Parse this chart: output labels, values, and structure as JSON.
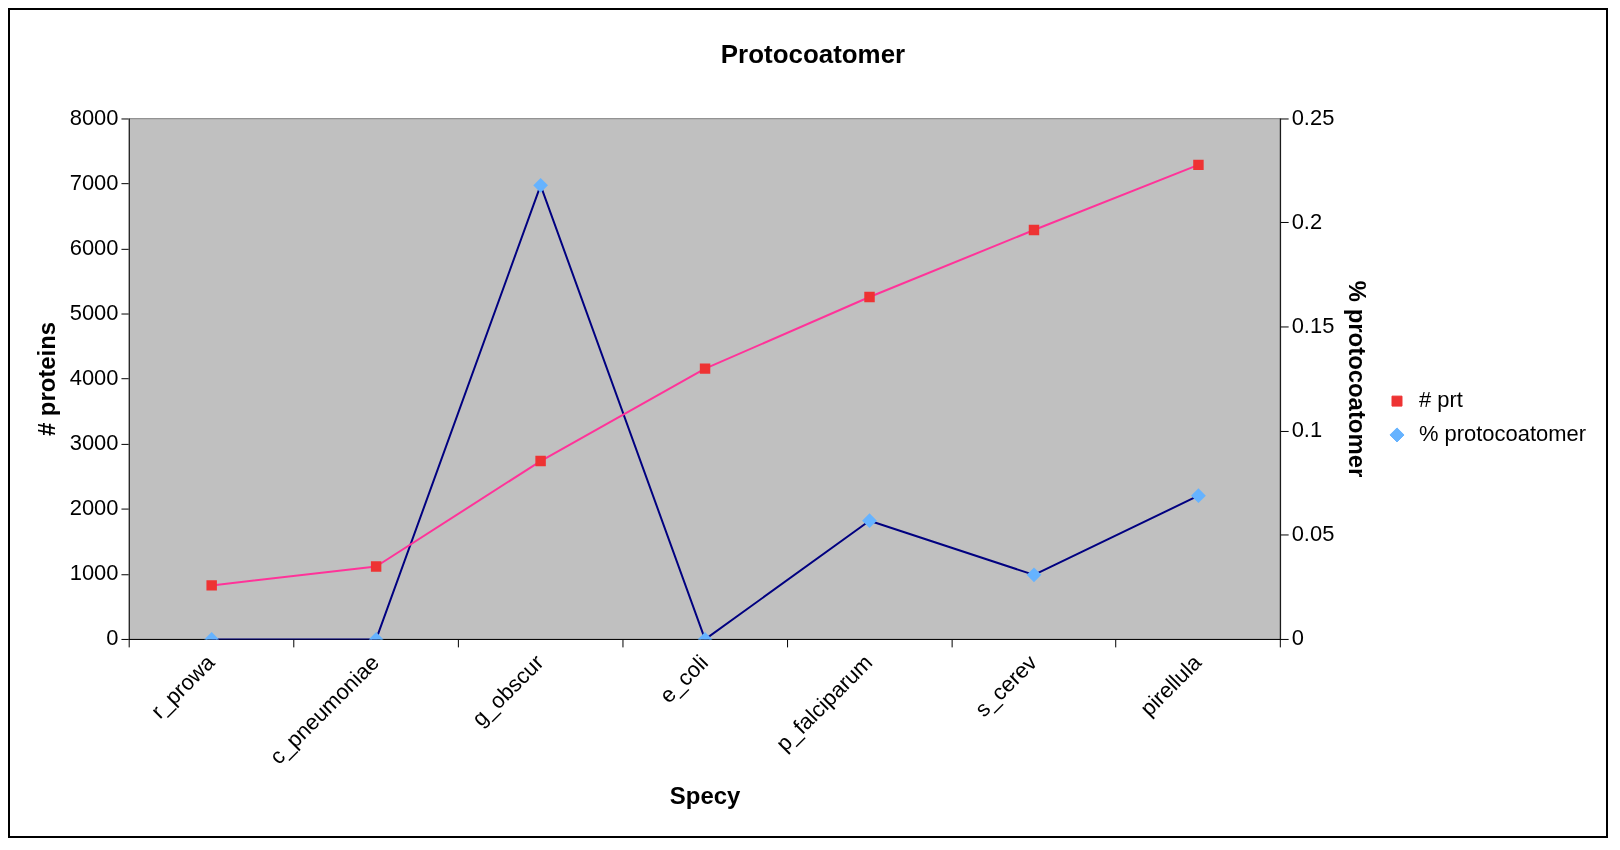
{
  "chart_data": {
    "type": "line",
    "title": "Protocoatomer",
    "xlabel": "Specy",
    "ylabel": "# proteins",
    "y2label": "% protocoatomer",
    "categories": [
      "r_prowa",
      "c_pneumoniae",
      "g_obscur",
      "e_coli",
      "p_falciparum",
      "s_cerev",
      "pirellula"
    ],
    "series": [
      {
        "name": "# prt",
        "color": "#ff3399",
        "marker": "square",
        "values": [
          830,
          1120,
          2740,
          4160,
          5260,
          6290,
          7290
        ]
      },
      {
        "name": "% protocoatomer",
        "color": "#000080",
        "marker": "diamond",
        "axis": "y2",
        "values": [
          0,
          0,
          0.218,
          0,
          0.057,
          0.031,
          0.069
        ]
      }
    ],
    "ylim": [
      0,
      8000
    ],
    "yticks": [
      0,
      1000,
      2000,
      3000,
      4000,
      5000,
      6000,
      7000,
      8000
    ],
    "y2lim": [
      0,
      0.25
    ],
    "y2ticks": [
      0,
      0.05,
      0.1,
      0.15,
      0.2,
      0.25
    ],
    "grid": false,
    "legend": "right",
    "line_style": "solid"
  }
}
